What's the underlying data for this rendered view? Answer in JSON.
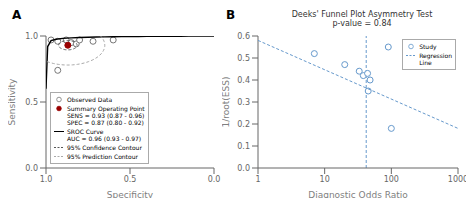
{
  "chart_data": [
    {
      "type": "scatter",
      "annotations": [
        "A"
      ],
      "xlabel": "Specificity",
      "ylabel": "Sensitivity",
      "xlim": [
        1.0,
        0.0
      ],
      "ylim": [
        0.0,
        1.0
      ],
      "xticks": [
        {
          "value": 1.0,
          "label": "1.0"
        },
        0.5,
        {
          "value": 0.0,
          "label": "0.0"
        }
      ],
      "yticks": [
        {
          "value": 0.0,
          "label": "0.0"
        },
        0.5,
        {
          "value": 1.0,
          "label": "1.0"
        }
      ],
      "legend": "lower left",
      "series": [
        {
          "name": "Observed Data",
          "type": "scatter",
          "marker": "hollow circle",
          "color": "#777777",
          "x": [
            0.97,
            0.93,
            0.88,
            0.85,
            0.82,
            0.8,
            0.72,
            0.6,
            0.93
          ],
          "values": [
            0.97,
            0.96,
            0.97,
            0.95,
            0.94,
            0.97,
            0.96,
            0.97,
            0.74
          ]
        },
        {
          "name": "Summary Operating Point\nSENS = 0.93 (0.87 - 0.96)\nSPEC = 0.87 (0.80 - 0.92)",
          "type": "scatter",
          "marker": "circle",
          "color": "#990000",
          "x": [
            0.87
          ],
          "values": [
            0.93
          ]
        },
        {
          "name": "SROC Curve\nAUC = 0.96 (0.93 - 0.97)",
          "type": "line",
          "line_style": "solid",
          "color": "#000000",
          "x": [
            1.0,
            0.99,
            0.97,
            0.94,
            0.9,
            0.85,
            0.8,
            0.75,
            0.7,
            0.65,
            0.6,
            0.55,
            0.5,
            0.45,
            0.4,
            0.35,
            0.3,
            0.25,
            0.2,
            0.15,
            0.1,
            0.05,
            0.02,
            0.0
          ],
          "values": [
            0.6,
            0.92,
            0.965,
            0.975,
            0.982,
            0.986,
            0.989,
            0.991,
            0.992,
            0.993,
            0.994,
            0.995,
            0.996,
            0.996,
            0.997,
            0.997,
            0.998,
            0.998,
            0.998,
            0.999,
            0.999,
            0.999,
            1.0,
            1.0
          ]
        },
        {
          "name": "95% Confidence Contour",
          "type": "ellipse",
          "line_style": "dashed",
          "color": "#555555",
          "ellipse": {
            "cx": 0.87,
            "cy": 0.93,
            "rx": 0.055,
            "ry": 0.035
          }
        },
        {
          "name": "95% Prediction Contour",
          "type": "ellipse",
          "line_style": "dashed",
          "color": "#aaaaaa",
          "ellipse": {
            "cx": 0.87,
            "cy": 0.93,
            "rx": 0.22,
            "ry": 0.15
          }
        }
      ]
    },
    {
      "type": "scatter",
      "annotations": [
        "B"
      ],
      "title": "Deeks' Funnel Plot Asymmetry Test",
      "subtitle": "p-value = 0.84",
      "xlabel": "Diagnostic Odds Ratio",
      "ylabel": "1/root(ESS)",
      "log": "x",
      "xlim": [
        1,
        1000
      ],
      "xticks": [
        1,
        10,
        100,
        1000
      ],
      "ylim": [
        0.0,
        0.6
      ],
      "yticks": [
        {
          "value": 0.0,
          "label": "0.0"
        },
        0.1,
        0.2,
        0.3,
        0.4,
        0.5,
        0.6
      ],
      "legend": "upper right",
      "series": [
        {
          "name": "Study",
          "type": "scatter",
          "marker": "hollow circle",
          "color": "#6699cc",
          "x": [
            7,
            20,
            33,
            38,
            44,
            48,
            90,
            100,
            45
          ],
          "values": [
            0.52,
            0.47,
            0.44,
            0.42,
            0.43,
            0.4,
            0.55,
            0.18,
            0.35
          ]
        },
        {
          "name": "Regression\nLine",
          "type": "line",
          "line_style": "dashed",
          "color": "#6699cc",
          "x": [
            1,
            1000
          ],
          "values": [
            0.58,
            0.18
          ]
        }
      ],
      "vlines": [
        {
          "value": 42,
          "color": "#6699cc",
          "line_style": "dashed"
        }
      ]
    }
  ]
}
